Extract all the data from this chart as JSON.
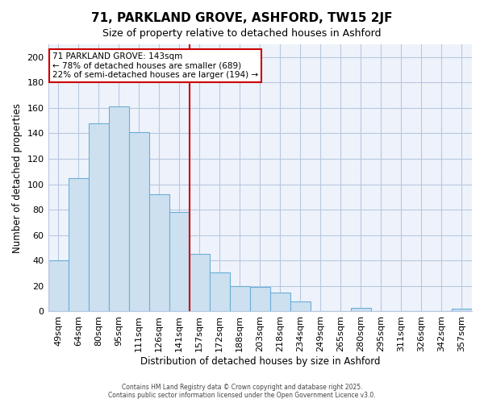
{
  "title": "71, PARKLAND GROVE, ASHFORD, TW15 2JF",
  "subtitle": "Size of property relative to detached houses in Ashford",
  "xlabel": "Distribution of detached houses by size in Ashford",
  "ylabel": "Number of detached properties",
  "categories": [
    "49sqm",
    "64sqm",
    "80sqm",
    "95sqm",
    "111sqm",
    "126sqm",
    "141sqm",
    "157sqm",
    "172sqm",
    "188sqm",
    "203sqm",
    "218sqm",
    "234sqm",
    "249sqm",
    "265sqm",
    "280sqm",
    "295sqm",
    "311sqm",
    "326sqm",
    "342sqm",
    "357sqm"
  ],
  "values": [
    40,
    105,
    148,
    161,
    141,
    92,
    78,
    45,
    31,
    20,
    19,
    15,
    8,
    0,
    0,
    3,
    0,
    0,
    0,
    0,
    2
  ],
  "bar_color": "#cce0f0",
  "bar_edge_color": "#6baed6",
  "property_line_index": 6,
  "annotation_text_line1": "71 PARKLAND GROVE: 143sqm",
  "annotation_text_line2": "← 78% of detached houses are smaller (689)",
  "annotation_text_line3": "22% of semi-detached houses are larger (194) →",
  "annotation_box_color": "#ffffff",
  "annotation_box_edge_color": "#cc0000",
  "property_line_color": "#cc0000",
  "ylim": [
    0,
    210
  ],
  "yticks": [
    0,
    20,
    40,
    60,
    80,
    100,
    120,
    140,
    160,
    180,
    200
  ],
  "footer_line1": "Contains HM Land Registry data © Crown copyright and database right 2025.",
  "footer_line2": "Contains public sector information licensed under the Open Government Licence v3.0.",
  "background_color": "#ffffff",
  "plot_bg_color": "#eef3fb",
  "grid_color": "#b8c8e0"
}
